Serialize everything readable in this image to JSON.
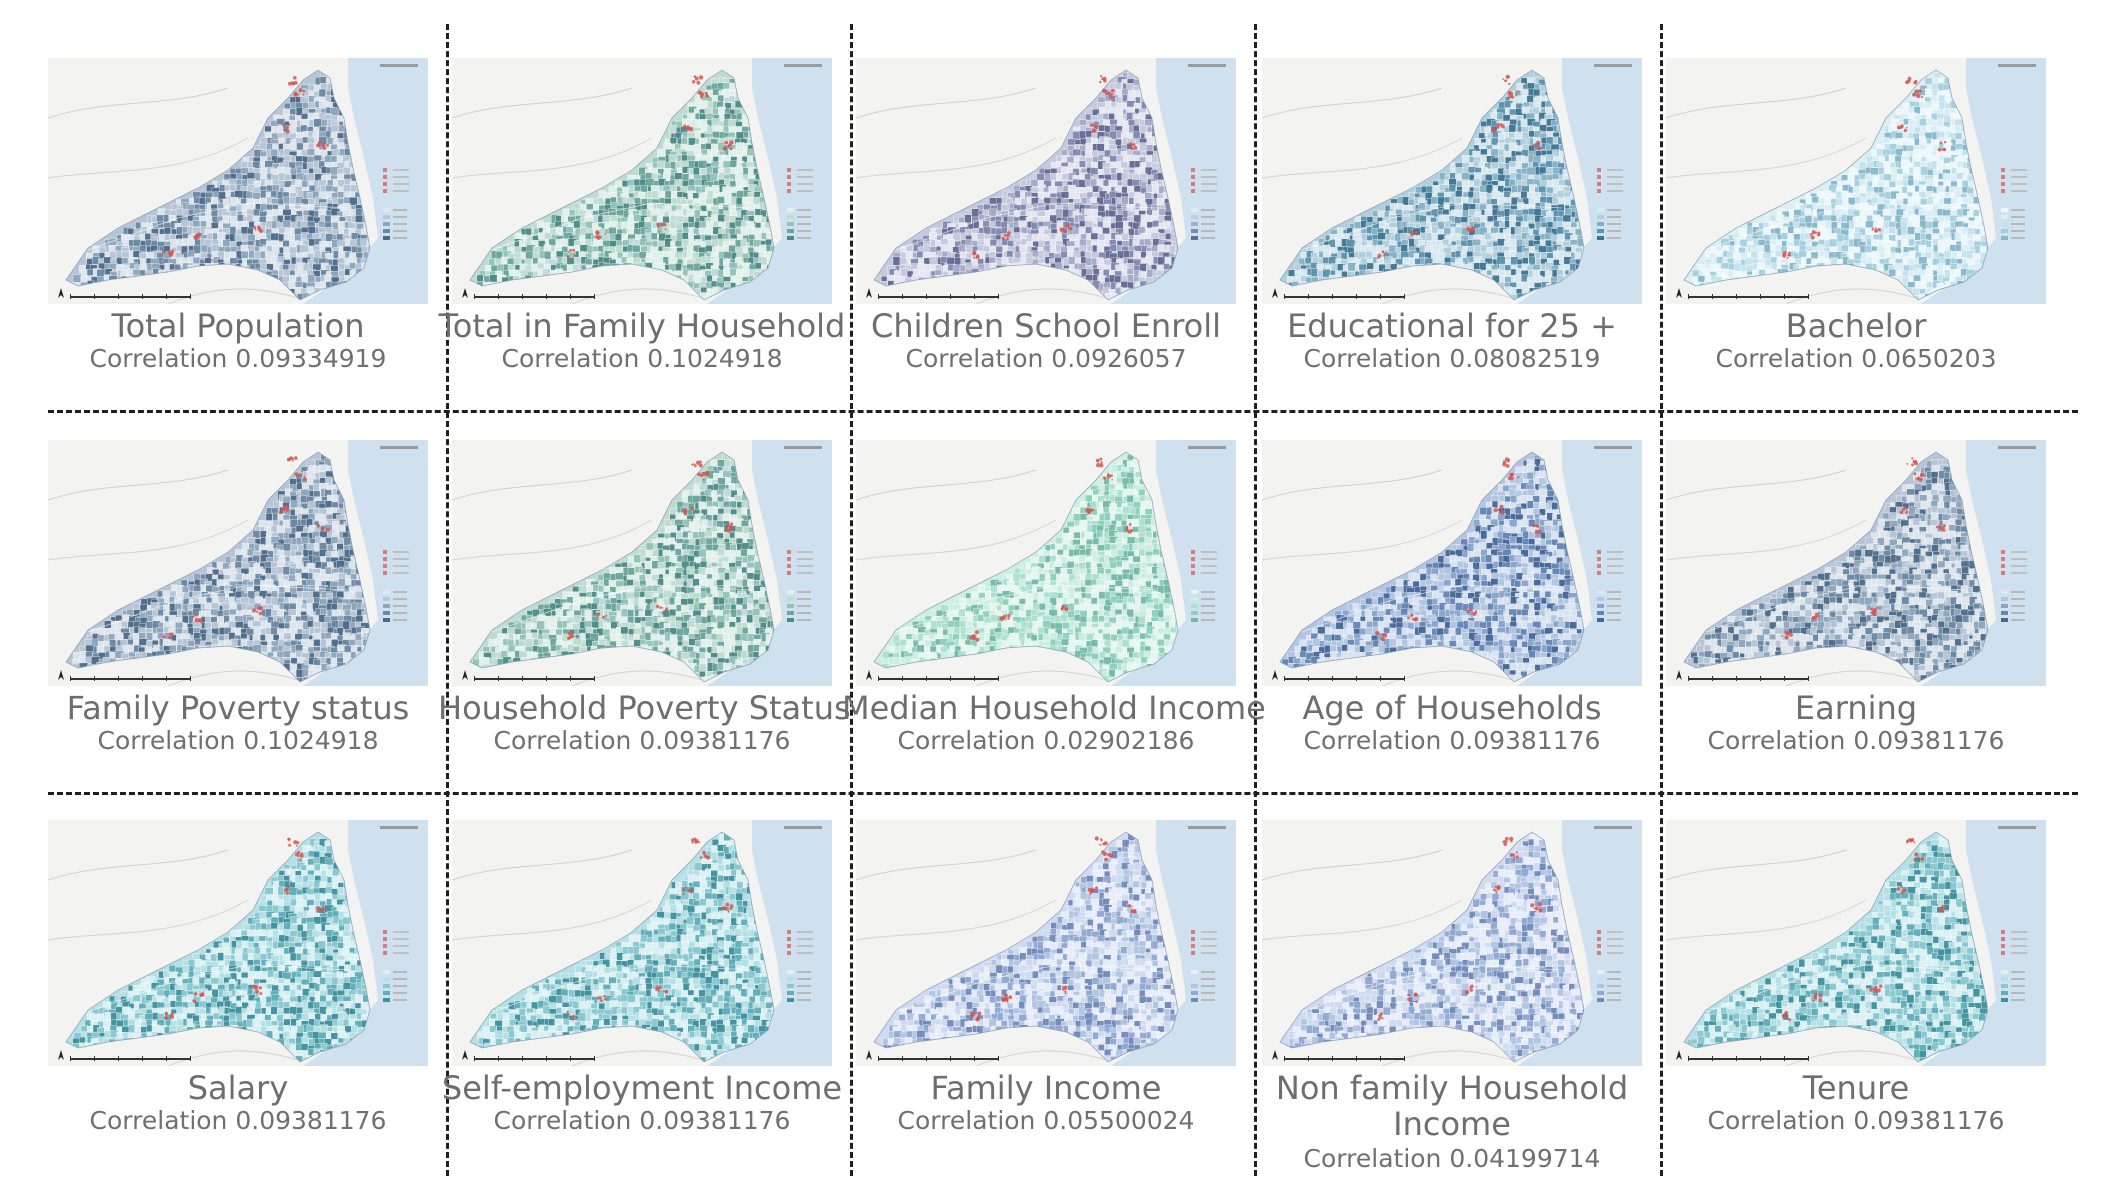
{
  "panels": [
    {
      "title": "Total Population",
      "correlation": "Correlation 0.09334919",
      "palette": "blue-gray"
    },
    {
      "title": "Total in Family Household",
      "correlation": "Correlation 0.1024918",
      "palette": "green-teal"
    },
    {
      "title": "Children School Enroll",
      "correlation": "Correlation 0.0926057",
      "palette": "lavender"
    },
    {
      "title": "Educational for 25 +",
      "correlation": "Correlation 0.08082519",
      "palette": "blue-teal"
    },
    {
      "title": "Bachelor",
      "correlation": "Correlation 0.0650203",
      "palette": "pale-cyan"
    },
    {
      "title": "Family Poverty status",
      "correlation": "Correlation 0.1024918",
      "palette": "blue-gray"
    },
    {
      "title": "Household Poverty Status",
      "correlation": "Correlation 0.09381176",
      "palette": "green-teal"
    },
    {
      "title": "Median Household Income",
      "correlation": "Correlation 0.02902186",
      "palette": "mint"
    },
    {
      "title": "Age of Households",
      "correlation": "Correlation 0.09381176",
      "palette": "blue"
    },
    {
      "title": "Earning",
      "correlation": "Correlation 0.09381176",
      "palette": "blue-gray"
    },
    {
      "title": "Salary",
      "correlation": "Correlation 0.09381176",
      "palette": "cyan-teal"
    },
    {
      "title": "Self-employment Income",
      "correlation": "Correlation 0.09381176",
      "palette": "cyan-teal"
    },
    {
      "title": "Family Income",
      "correlation": "Correlation 0.05500024",
      "palette": "light-blue"
    },
    {
      "title": "Non family Household Income",
      "correlation": "Correlation 0.04199714",
      "palette": "light-blue"
    },
    {
      "title": "Tenure",
      "correlation": "Correlation 0.09381176",
      "palette": "cyan-teal"
    }
  ],
  "palettes": {
    "blue-gray": [
      "#dfe6ee",
      "#b7c6d6",
      "#8ea6bd",
      "#6b87a3",
      "#4d6b89"
    ],
    "green-teal": [
      "#e3f1ec",
      "#bfdcd3",
      "#93c2b8",
      "#6aa59c",
      "#4c8a86"
    ],
    "lavender": [
      "#e6e7f1",
      "#c6cade",
      "#a4aac9",
      "#8188af",
      "#646b93"
    ],
    "blue-teal": [
      "#dbe9f0",
      "#b2cfdd",
      "#85b1c6",
      "#5c92ad",
      "#3f7592"
    ],
    "pale-cyan": [
      "#eef7fa",
      "#dbeef4",
      "#c4e2ec",
      "#a4cfde",
      "#86b7c9"
    ],
    "mint": [
      "#e6f6f0",
      "#cdeee2",
      "#ace0cf",
      "#8dcfba",
      "#74b9a6"
    ],
    "blue": [
      "#dbe4f1",
      "#b3c6e1",
      "#88a5cc",
      "#6485b4",
      "#466897"
    ],
    "cyan-teal": [
      "#ddf1f3",
      "#b5e0e5",
      "#88c8d0",
      "#5fadb8",
      "#40909e"
    ],
    "light-blue": [
      "#e8eef8",
      "#cfdbf0",
      "#b1c4e3",
      "#90a8d2",
      "#7189b9"
    ]
  },
  "colors": {
    "water": "#cfe0ef",
    "land_outside": "#f3f3f2",
    "highlight": "#d9534f",
    "divider": "#1e1e1e"
  }
}
